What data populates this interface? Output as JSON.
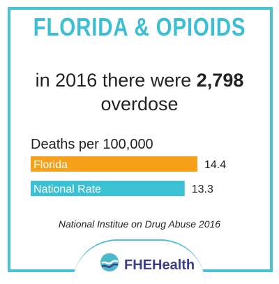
{
  "title": "FLORIDA & OPIOIDS",
  "headline": {
    "prefix": "in 2016 there were ",
    "number": "2,798",
    "suffix": "overdose"
  },
  "source": "National Institue on Drug Abuse 2016",
  "logo": {
    "text": "FHEHealth"
  },
  "colors": {
    "accent": "#4dc1d4",
    "florida": "#f7a11a",
    "national": "#3bc1d3"
  },
  "chart_data": {
    "type": "bar",
    "orientation": "horizontal",
    "ylabel": "Deaths per 100,000",
    "categories": [
      "Florida",
      "National Rate"
    ],
    "values": [
      14.4,
      13.3
    ],
    "value_labels": [
      "14.4",
      "13.3"
    ],
    "colors": [
      "#f7a11a",
      "#3bc1d3"
    ],
    "xlim": [
      0,
      14.4
    ]
  }
}
